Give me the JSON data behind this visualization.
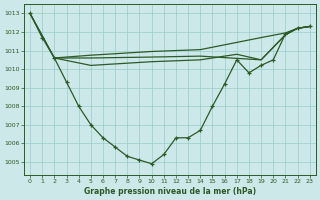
{
  "xlabel": "Graphe pression niveau de la mer (hPa)",
  "xlim": [
    -0.5,
    23.5
  ],
  "ylim": [
    1004.3,
    1013.5
  ],
  "yticks": [
    1005,
    1006,
    1007,
    1008,
    1009,
    1010,
    1011,
    1012,
    1013
  ],
  "xticks": [
    0,
    1,
    2,
    3,
    4,
    5,
    6,
    7,
    8,
    9,
    10,
    11,
    12,
    13,
    14,
    15,
    16,
    17,
    18,
    19,
    20,
    21,
    22,
    23
  ],
  "bg_color": "#cce8e8",
  "grid_color": "#99cccc",
  "line_color": "#2d5a27",
  "main_x": [
    0,
    1,
    2,
    3,
    4,
    5,
    6,
    7,
    8,
    9,
    10,
    11,
    12,
    13,
    14,
    15,
    16,
    17,
    18,
    19,
    20,
    21,
    22,
    23
  ],
  "main_y": [
    1013.0,
    1011.7,
    1010.6,
    1009.3,
    1008.0,
    1007.0,
    1006.3,
    1005.8,
    1005.3,
    1005.1,
    1004.9,
    1005.4,
    1006.3,
    1006.3,
    1006.7,
    1008.0,
    1009.2,
    1010.5,
    1009.8,
    1010.2,
    1010.5,
    1011.9,
    1012.2,
    1012.3
  ],
  "smooth1_x": [
    0,
    2,
    5,
    10,
    14,
    19,
    21,
    22,
    23
  ],
  "smooth1_y": [
    1013.0,
    1010.6,
    1010.6,
    1010.65,
    1010.7,
    1010.5,
    1011.85,
    1012.2,
    1012.3
  ],
  "smooth2_x": [
    0,
    2,
    5,
    10,
    14,
    19,
    21,
    22,
    23
  ],
  "smooth2_y": [
    1013.0,
    1010.6,
    1010.75,
    1010.95,
    1011.05,
    1011.7,
    1011.95,
    1012.2,
    1012.3
  ],
  "smooth3_x": [
    2,
    5,
    10,
    14,
    17,
    19,
    21,
    22,
    23
  ],
  "smooth3_y": [
    1010.6,
    1010.2,
    1010.4,
    1010.5,
    1010.8,
    1010.5,
    1011.85,
    1012.2,
    1012.3
  ]
}
